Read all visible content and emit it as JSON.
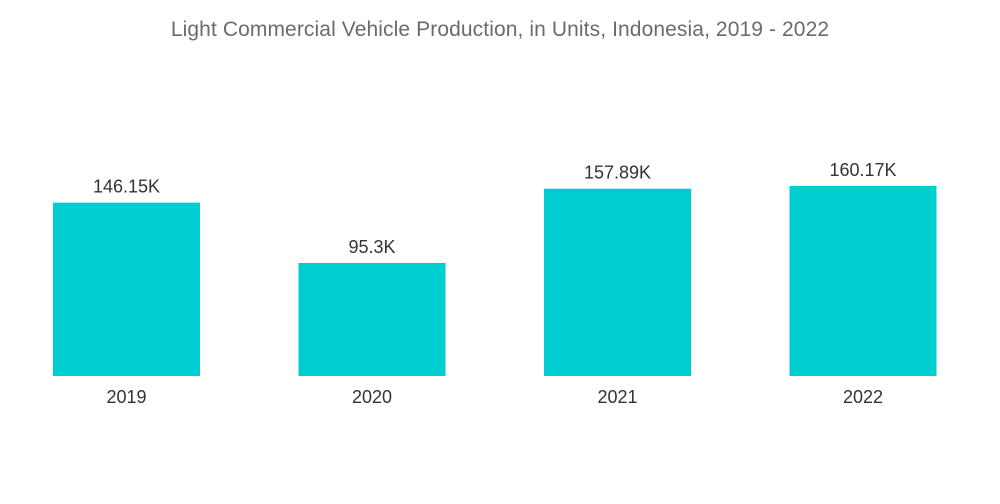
{
  "chart_data": {
    "type": "bar",
    "title": "Light Commercial Vehicle Production, in Units, Indonesia, 2019 - 2022",
    "categories": [
      "2019",
      "2020",
      "2021",
      "2022"
    ],
    "values": [
      146150,
      95300,
      157890,
      160170
    ],
    "data_labels": [
      "146.15K",
      "95.3K",
      "157.89K",
      "160.17K"
    ],
    "xlabel": "",
    "ylabel": "",
    "ylim": [
      0,
      160170
    ],
    "grid": false,
    "legend": "none",
    "colors": {
      "bar": "#00cdd0"
    }
  }
}
